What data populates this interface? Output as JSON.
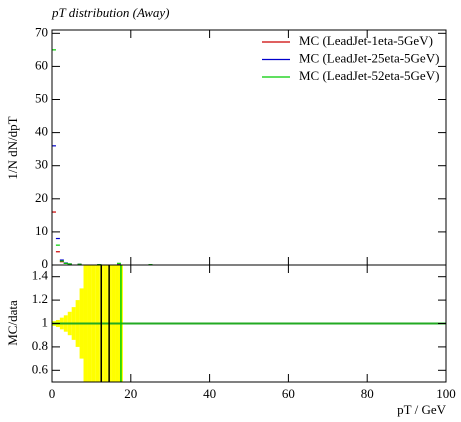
{
  "chart_data": {
    "type": "histogram-ratio",
    "title": "pT distribution (Away)",
    "ylabel": "1/N dN/dpT",
    "xlabel": "pT / GeV",
    "ratio_ylabel": "MC/data",
    "x": [
      0.5,
      1.5,
      2.5,
      3.5,
      4.5,
      7,
      12,
      17,
      25
    ],
    "series": [
      {
        "name": "MC (LeadJet-1eta-5GeV)",
        "color": "#cc0000",
        "values": [
          16,
          4,
          1,
          0.5,
          0.3,
          0.2,
          0.1,
          0.05,
          0.02
        ]
      },
      {
        "name": "MC (LeadJet-25eta-5GeV)",
        "color": "#0000cc",
        "values": [
          36,
          8,
          1.5,
          0.6,
          0.3,
          0.2,
          0.1,
          0.05,
          0.02
        ]
      },
      {
        "name": "MC (LeadJet-52eta-5GeV)",
        "color": "#00cc00",
        "values": [
          65,
          6,
          1.2,
          0.5,
          0.3,
          0.2,
          0.1,
          0.5,
          0.1
        ]
      }
    ],
    "xlim": [
      0,
      100
    ],
    "xticks": [
      0,
      20,
      40,
      60,
      80,
      100
    ],
    "ylim": [
      0,
      71
    ],
    "yticks": [
      0,
      10,
      20,
      30,
      40,
      50,
      60,
      70
    ],
    "ratio_ylim": [
      0.5,
      1.5
    ],
    "ratio_yticks": [
      0.6,
      0.8,
      1,
      1.2,
      1.4
    ],
    "ratio_reference": 1,
    "ratio_reference_color": "#22aa22",
    "band_color": "#ffff00",
    "band_edges": [
      0,
      1,
      2,
      3,
      4,
      5,
      6,
      7,
      8,
      9,
      10,
      11,
      12,
      13,
      14,
      15,
      16,
      17,
      18
    ],
    "band_errors": [
      0.02,
      0.03,
      0.05,
      0.07,
      0.1,
      0.14,
      0.2,
      0.3,
      0.5,
      0.6,
      0.6,
      0.6,
      0.6,
      0.6,
      0.6,
      0.6,
      0.6,
      0.6
    ],
    "ratio_lines": [
      {
        "x": 12.5,
        "color": "#000000"
      },
      {
        "x": 14.5,
        "color": "#000000"
      },
      {
        "x": 17.5,
        "color": "#00cc00"
      }
    ]
  }
}
